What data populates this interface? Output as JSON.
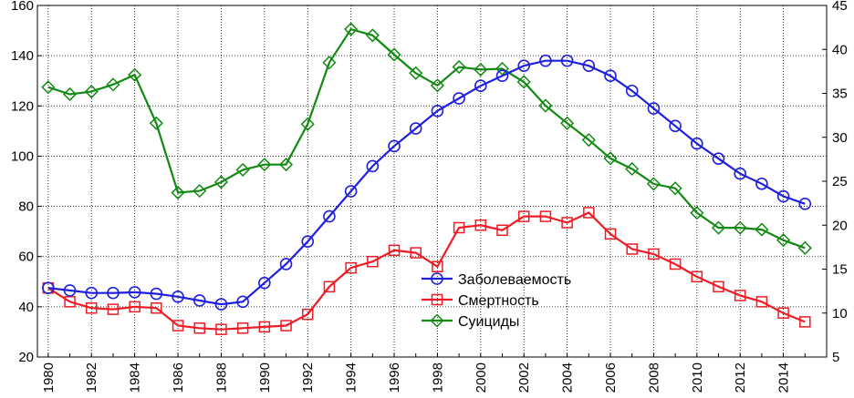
{
  "chart_data": {
    "type": "line",
    "title": "",
    "xlabel": "",
    "ylabel": "",
    "y2label": "",
    "x": [
      1980,
      1981,
      1982,
      1983,
      1984,
      1985,
      1986,
      1987,
      1988,
      1989,
      1990,
      1991,
      1992,
      1993,
      1994,
      1995,
      1996,
      1997,
      1998,
      1999,
      2000,
      2001,
      2002,
      2003,
      2004,
      2005,
      2006,
      2007,
      2008,
      2009,
      2010,
      2011,
      2012,
      2013,
      2014,
      2015
    ],
    "xlim": [
      1979.5,
      2016
    ],
    "x_ticks": [
      "1980",
      "1982",
      "1984",
      "1986",
      "1988",
      "1990",
      "1992",
      "1994",
      "1996",
      "1998",
      "2000",
      "2002",
      "2004",
      "2006",
      "2008",
      "2010",
      "2012",
      "2014"
    ],
    "ylim": [
      20,
      160
    ],
    "y_ticks": [
      "20",
      "40",
      "60",
      "80",
      "100",
      "120",
      "140",
      "160"
    ],
    "y2lim": [
      5,
      45
    ],
    "y2_ticks": [
      "5",
      "10",
      "15",
      "20",
      "25",
      "30",
      "35",
      "40",
      "45"
    ],
    "grid": true,
    "legend_position": "center",
    "series": [
      {
        "name": "Заболеваемость",
        "axis": "left",
        "marker": "circle",
        "color": "#1f1fdf",
        "values": [
          47.5,
          46.5,
          45.5,
          45.5,
          45.8,
          45.2,
          44,
          42.5,
          41,
          42,
          49.5,
          57,
          66,
          76,
          86,
          96,
          104,
          111,
          118,
          123,
          128,
          132,
          136,
          138,
          138,
          136,
          132,
          126,
          119,
          112,
          105,
          99,
          93,
          89,
          84,
          81
        ]
      },
      {
        "name": "Смертность",
        "axis": "left",
        "marker": "square",
        "color": "#ee1c24",
        "values": [
          47.5,
          42,
          39.5,
          39,
          40,
          39.5,
          32.5,
          31.5,
          31,
          31.5,
          32,
          32.5,
          37,
          48,
          55.5,
          58,
          62.5,
          61.5,
          56,
          71.5,
          72.5,
          70.5,
          76,
          76,
          73.5,
          77.5,
          69,
          63,
          61,
          57,
          52,
          48,
          44.5,
          42,
          37.5,
          34
        ]
      },
      {
        "name": "Суициды",
        "axis": "right",
        "marker": "diamond",
        "color": "#128a12",
        "values": [
          35.7,
          34.9,
          35.2,
          36,
          37.1,
          31.6,
          23.7,
          23.9,
          24.9,
          26.3,
          26.9,
          26.9,
          31.5,
          38.5,
          42.3,
          41.6,
          39.4,
          37.3,
          35.9,
          38,
          37.7,
          37.8,
          36.3,
          33.6,
          31.6,
          29.7,
          27.6,
          26.4,
          24.7,
          24.2,
          21.4,
          19.7,
          19.7,
          19.5,
          18.3,
          17.4
        ]
      }
    ]
  }
}
